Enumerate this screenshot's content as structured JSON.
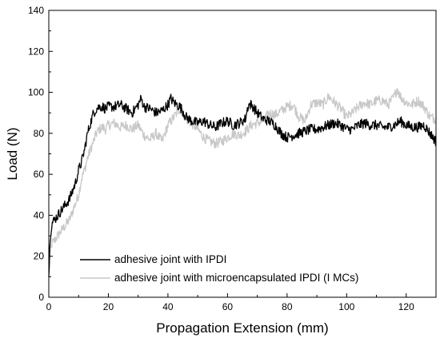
{
  "chart_data": {
    "type": "line",
    "title": "",
    "xlabel": "Propagation Extension (mm)",
    "ylabel": "Load (N)",
    "xlim": [
      0,
      130
    ],
    "ylim": [
      0,
      140
    ],
    "x_ticks": [
      0,
      20,
      40,
      60,
      80,
      100,
      120
    ],
    "y_ticks": [
      0,
      20,
      40,
      60,
      80,
      100,
      120,
      140
    ],
    "grid": false,
    "legend_position": "bottom-left",
    "series": [
      {
        "name": "adhesive joint with IPDI",
        "color": "#000000",
        "x": [
          0,
          0.5,
          1,
          2,
          3,
          4,
          5,
          6,
          7,
          8,
          9,
          10,
          11,
          12,
          13,
          14,
          15,
          16,
          17,
          18,
          19,
          20,
          22,
          24,
          26,
          28,
          30,
          31,
          32,
          34,
          36,
          38,
          40,
          41,
          42,
          43,
          44,
          45,
          46,
          48,
          50,
          52,
          54,
          56,
          58,
          60,
          62,
          64,
          66,
          67,
          68,
          69,
          70,
          72,
          74,
          76,
          78,
          80,
          82,
          84,
          86,
          88,
          90,
          92,
          94,
          96,
          98,
          100,
          102,
          104,
          106,
          108,
          110,
          112,
          114,
          116,
          118,
          120,
          122,
          124,
          126,
          128,
          130
        ],
        "y": [
          10,
          30,
          36,
          38,
          40,
          42,
          44,
          46,
          48,
          52,
          56,
          62,
          66,
          72,
          80,
          85,
          90,
          92,
          93,
          93,
          92,
          93,
          93,
          94,
          92,
          90,
          94,
          97,
          93,
          92,
          90,
          91,
          94,
          97,
          95,
          94,
          93,
          91,
          88,
          86,
          85,
          86,
          84,
          83,
          85,
          86,
          84,
          85,
          87,
          94,
          94,
          92,
          90,
          87,
          86,
          84,
          80,
          78,
          79,
          80,
          81,
          82,
          82,
          83,
          84,
          85,
          84,
          82,
          82,
          84,
          85,
          84,
          84,
          83,
          83,
          84,
          86,
          84,
          83,
          83,
          84,
          80,
          76
        ]
      },
      {
        "name": "adhesive joint with microencapsulated IPDI (I MCs)",
        "color": "#c8c8c8",
        "x": [
          0,
          0.5,
          1,
          2,
          3,
          4,
          5,
          6,
          7,
          8,
          9,
          10,
          11,
          12,
          13,
          14,
          15,
          16,
          17,
          18,
          19,
          20,
          22,
          24,
          26,
          28,
          30,
          32,
          34,
          36,
          38,
          40,
          42,
          44,
          45,
          46,
          48,
          50,
          52,
          54,
          56,
          58,
          60,
          62,
          64,
          66,
          68,
          70,
          72,
          74,
          76,
          78,
          80,
          82,
          84,
          86,
          88,
          90,
          92,
          94,
          96,
          98,
          100,
          102,
          104,
          106,
          108,
          110,
          112,
          114,
          116,
          117,
          118,
          120,
          122,
          124,
          126,
          128,
          130
        ],
        "y": [
          15,
          22,
          26,
          28,
          30,
          32,
          34,
          36,
          38,
          42,
          46,
          50,
          58,
          62,
          68,
          72,
          76,
          80,
          82,
          83,
          82,
          84,
          85,
          83,
          84,
          82,
          84,
          79,
          77,
          80,
          76,
          84,
          88,
          92,
          90,
          87,
          85,
          82,
          78,
          76,
          75,
          76,
          78,
          80,
          79,
          81,
          84,
          85,
          86,
          90,
          89,
          91,
          93,
          94,
          88,
          86,
          94,
          95,
          94,
          98,
          95,
          92,
          88,
          90,
          93,
          95,
          94,
          96,
          96,
          94,
          98,
          102,
          98,
          95,
          94,
          96,
          93,
          88,
          87
        ]
      }
    ]
  }
}
